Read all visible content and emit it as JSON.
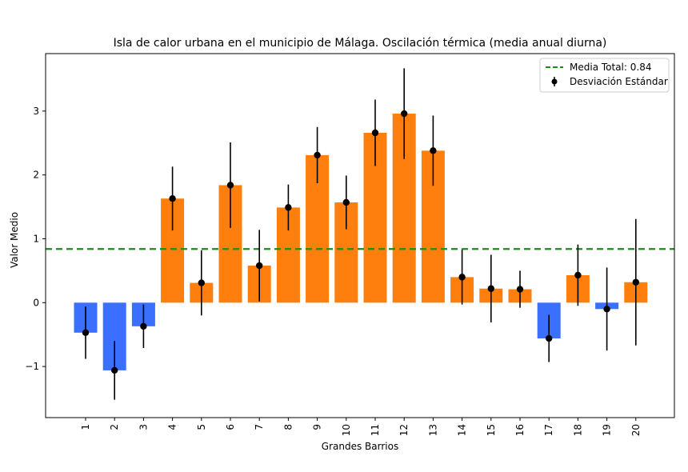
{
  "chart_data": {
    "type": "bar",
    "title": "Isla de calor urbana en el municipio de Málaga. Oscilación térmica (media anual diurna)",
    "xlabel": "Grandes Barrios",
    "ylabel": "Valor Medio",
    "ylim": [
      -1.8,
      3.9
    ],
    "yticks": [
      -1,
      0,
      1,
      2,
      3
    ],
    "ytick_labels": [
      "−1",
      "0",
      "1",
      "2",
      "3"
    ],
    "categories": [
      "1",
      "2",
      "3",
      "4",
      "5",
      "6",
      "7",
      "8",
      "9",
      "10",
      "11",
      "12",
      "13",
      "14",
      "15",
      "16",
      "17",
      "18",
      "19",
      "20"
    ],
    "values": [
      -0.47,
      -1.06,
      -0.37,
      1.63,
      0.31,
      1.84,
      0.58,
      1.49,
      2.31,
      1.57,
      2.66,
      2.96,
      2.38,
      0.4,
      0.22,
      0.21,
      -0.56,
      0.43,
      -0.1,
      0.32
    ],
    "errors": [
      0.41,
      0.46,
      0.34,
      0.5,
      0.51,
      0.67,
      0.56,
      0.36,
      0.44,
      0.42,
      0.52,
      0.71,
      0.55,
      0.43,
      0.53,
      0.29,
      0.37,
      0.48,
      0.65,
      0.99
    ],
    "mean_line": 0.84,
    "colors": {
      "positive": "#ff7f0e",
      "negative": "#3b6fff",
      "mean_line": "#1a8c1a",
      "errorbar": "#000000"
    },
    "legend": {
      "placement": "top-right",
      "entries": [
        "Media Total: 0.84",
        "Desviación Estándar"
      ]
    },
    "grid": false
  }
}
